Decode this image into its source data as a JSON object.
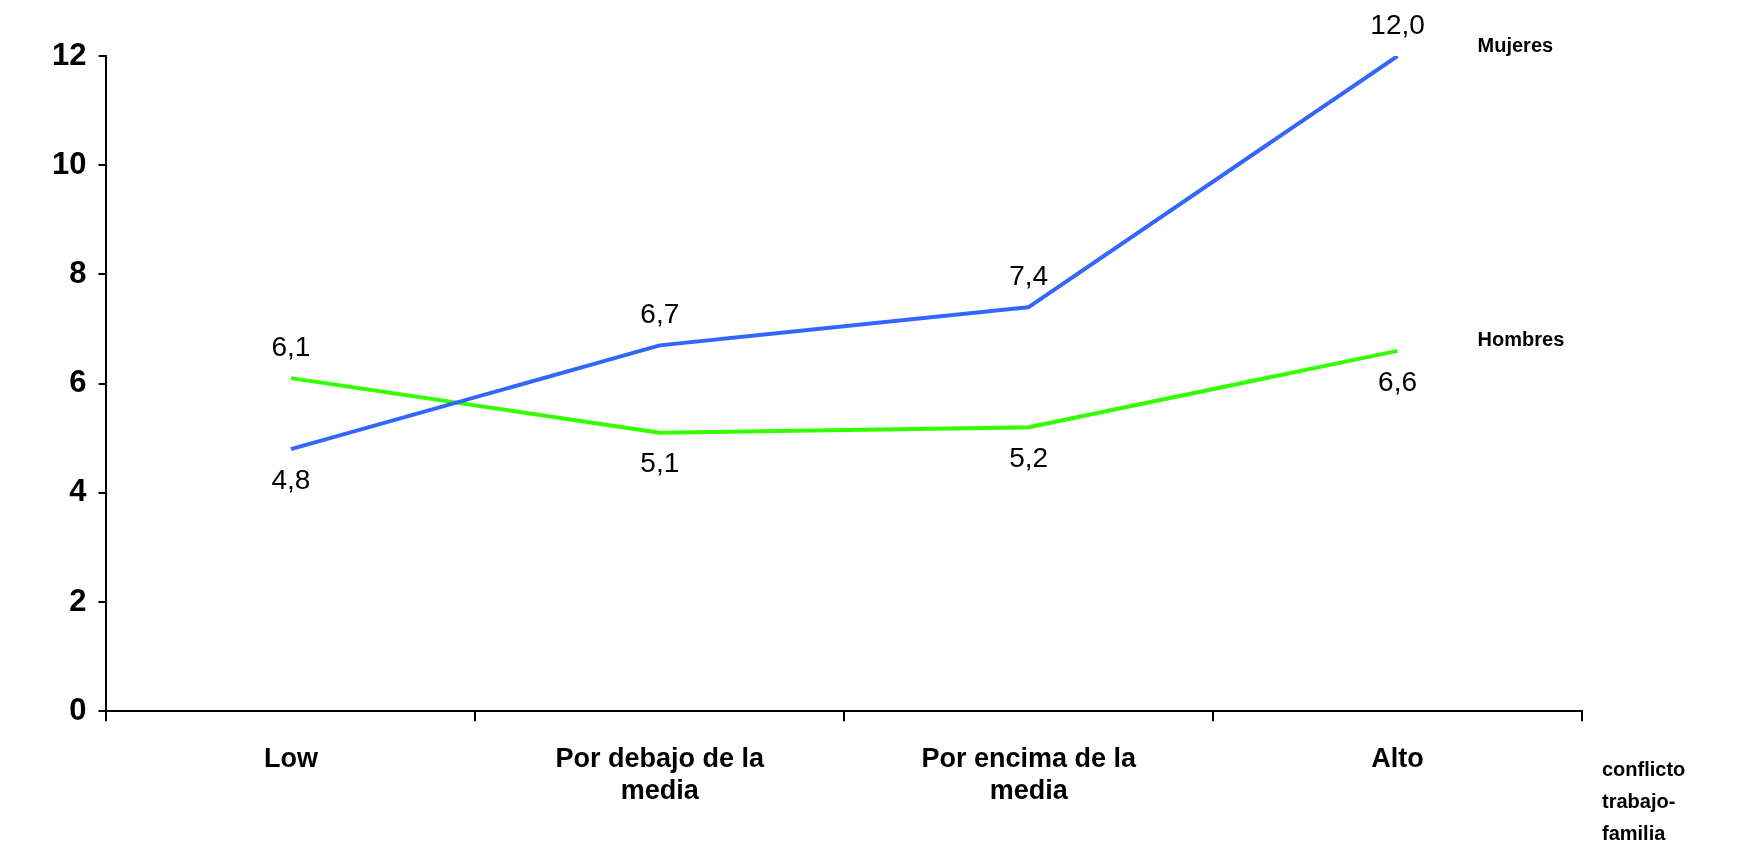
{
  "chart_data": {
    "type": "line",
    "xlabel": "conflicto trabajo-familia",
    "categories": [
      "Low",
      "Por debajo de la media",
      "Por encima de la media",
      "Alto"
    ],
    "series": [
      {
        "name": "Mujeres",
        "color": "#3366ff",
        "values": [
          4.8,
          6.7,
          7.4,
          12.0
        ],
        "value_labels": [
          "4,8",
          "6,7",
          "7,4",
          "12,0"
        ]
      },
      {
        "name": "Hombres",
        "color": "#33ff00",
        "values": [
          6.1,
          5.1,
          5.2,
          6.6
        ],
        "value_labels": [
          "6,1",
          "5,1",
          "5,2",
          "6,6"
        ]
      }
    ],
    "ylim": [
      0,
      12
    ],
    "yticks": [
      0,
      2,
      4,
      6,
      8,
      10,
      12
    ],
    "grid": false,
    "legend": false,
    "marker": "none",
    "line_style": "solid"
  }
}
